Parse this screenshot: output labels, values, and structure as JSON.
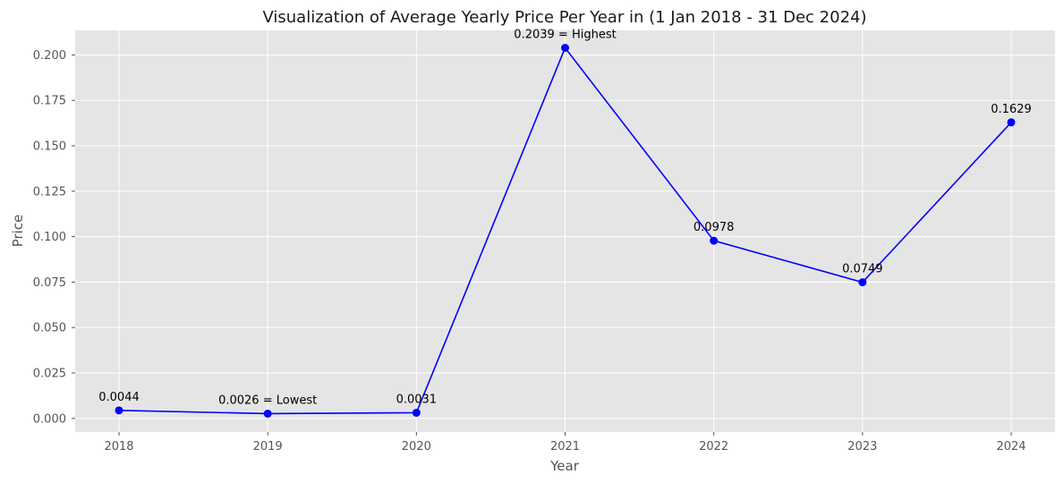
{
  "chart_data": {
    "type": "line",
    "title": "Visualization of Average Yearly Price Per Year in (1 Jan 2018 - 31 Dec 2024)",
    "xlabel": "Year",
    "ylabel": "Price",
    "categories": [
      "2018",
      "2019",
      "2020",
      "2021",
      "2022",
      "2023",
      "2024"
    ],
    "values": [
      0.0044,
      0.0026,
      0.0031,
      0.2039,
      0.0978,
      0.0749,
      0.1629
    ],
    "data_labels": [
      "0.0044",
      "0.0026 = Lowest",
      "0.0031",
      "0.2039 = Highest",
      "0.0978",
      "0.0749",
      "0.1629"
    ],
    "ylim": [
      -0.0075,
      0.2135
    ],
    "yticks": [
      "0.000",
      "0.025",
      "0.050",
      "0.075",
      "0.100",
      "0.125",
      "0.150",
      "0.175",
      "0.200"
    ],
    "ytick_values": [
      0,
      0.025,
      0.05,
      0.075,
      0.1,
      0.125,
      0.15,
      0.175,
      0.2
    ],
    "grid": true,
    "colors": {
      "line": "#0000ff",
      "marker": "#0000ff",
      "plot_background": "#e5e5e5",
      "grid": "#ffffff"
    }
  }
}
